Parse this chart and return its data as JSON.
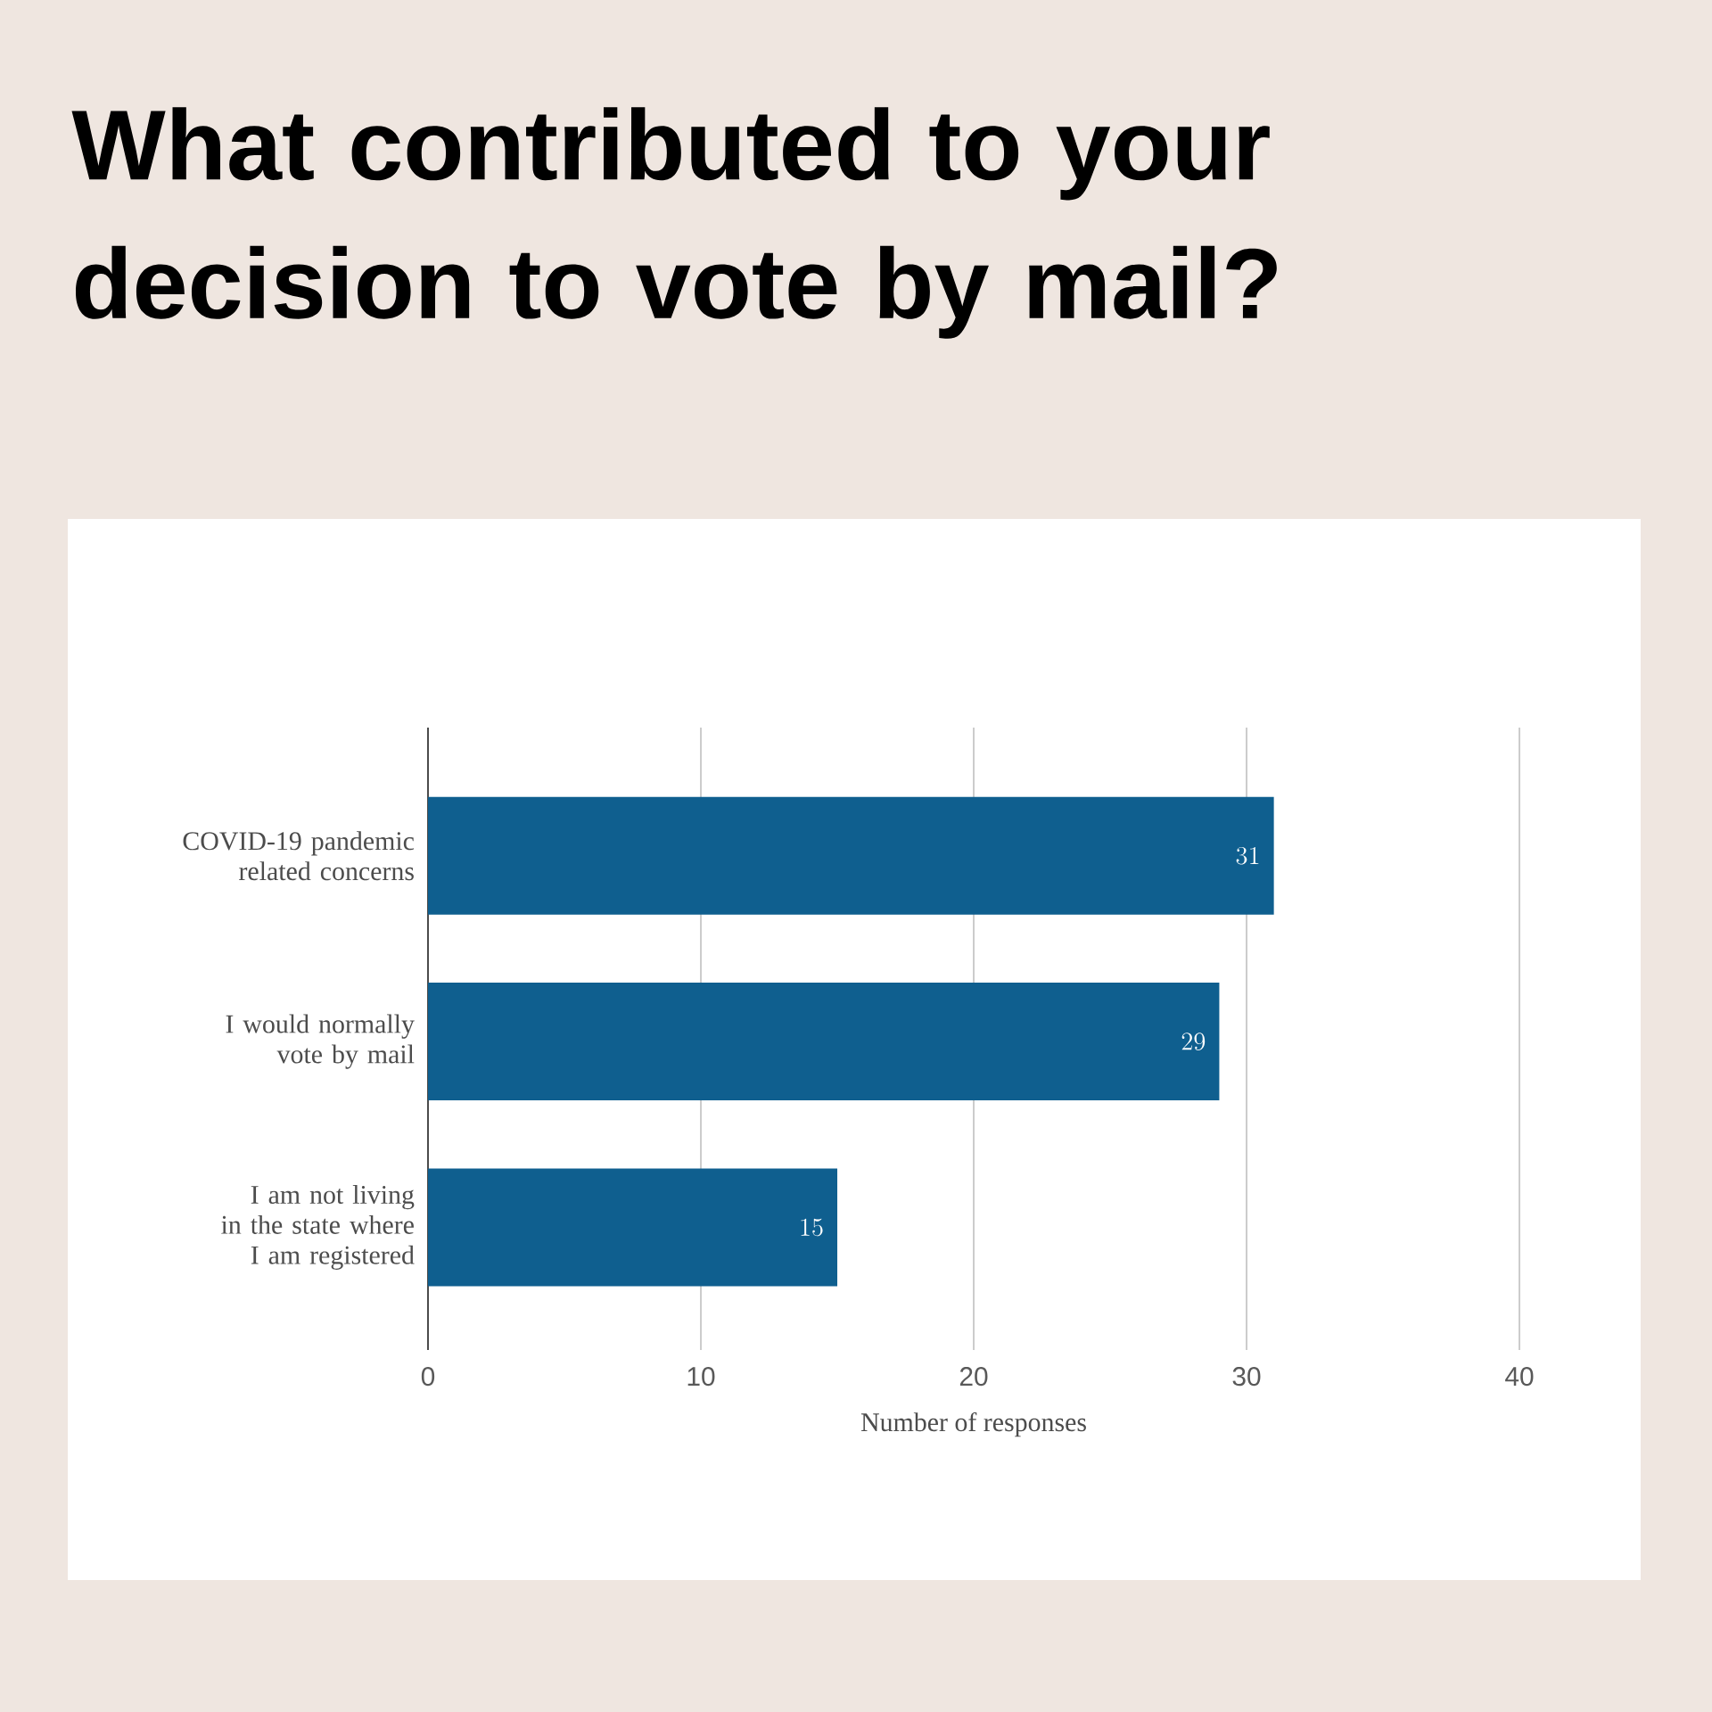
{
  "chart_data": {
    "type": "bar",
    "orientation": "horizontal",
    "title": "What contributed to your decision to vote by mail?",
    "categories": [
      "COVID-19 pandemic related concerns",
      "I would normally vote by mail",
      "I am not living in the state where I am registered"
    ],
    "values": [
      31,
      29,
      15
    ],
    "color": "#0f5f8f",
    "xlim": [
      0,
      40
    ],
    "xticks": [
      0,
      10,
      20,
      30,
      40
    ],
    "xlabel": "Number of responses",
    "grid": "x",
    "data_labels": true
  }
}
